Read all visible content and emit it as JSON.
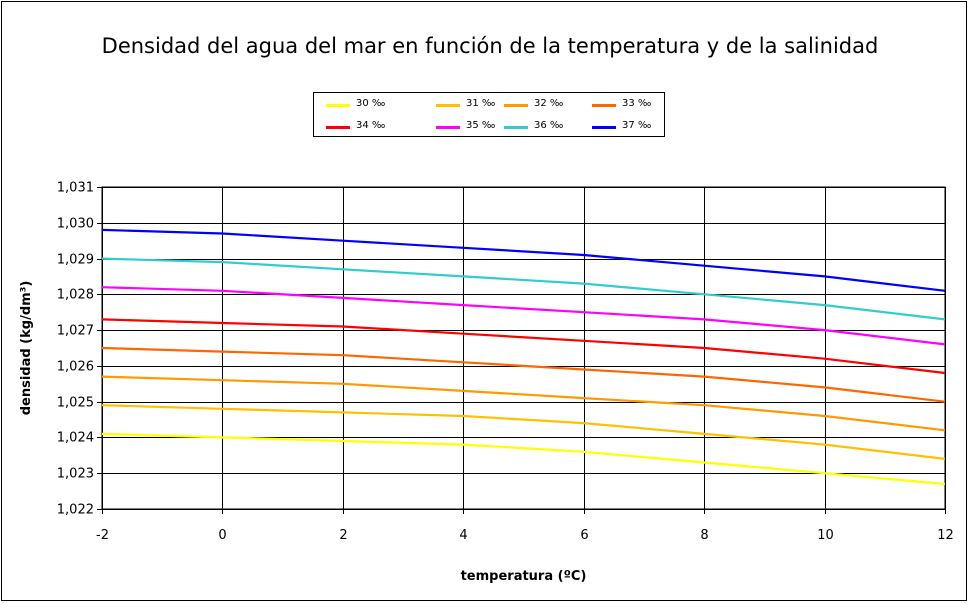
{
  "chart_data": {
    "type": "line",
    "title": "Densidad del agua del mar en función de la temperatura y de la salinidad",
    "xlabel": "temperatura (ºC)",
    "ylabel": "densidad (kg/dm³)",
    "xlim": [
      -2,
      12
    ],
    "ylim": [
      1.022,
      1.031
    ],
    "xticks": [
      "-2",
      "0",
      "2",
      "4",
      "6",
      "8",
      "10",
      "12"
    ],
    "yticks": [
      "1,022",
      "1,023",
      "1,024",
      "1,025",
      "1,026",
      "1,027",
      "1,028",
      "1,029",
      "1,030",
      "1,031"
    ],
    "x": [
      -2,
      0,
      2,
      4,
      6,
      8,
      10,
      12
    ],
    "series": [
      {
        "name": "30 ‰",
        "color": "#ffff00",
        "values": [
          1.0241,
          1.024,
          1.0239,
          1.0238,
          1.0236,
          1.0233,
          1.023,
          1.0227
        ]
      },
      {
        "name": "31 ‰",
        "color": "#ffc000",
        "values": [
          1.0249,
          1.0248,
          1.0247,
          1.0246,
          1.0244,
          1.0241,
          1.0238,
          1.0234
        ]
      },
      {
        "name": "32 ‰",
        "color": "#ff9900",
        "values": [
          1.0257,
          1.0256,
          1.0255,
          1.0253,
          1.0251,
          1.0249,
          1.0246,
          1.0242
        ]
      },
      {
        "name": "33 ‰",
        "color": "#ff6600",
        "values": [
          1.0265,
          1.0264,
          1.0263,
          1.0261,
          1.0259,
          1.0257,
          1.0254,
          1.025
        ]
      },
      {
        "name": "34 ‰",
        "color": "#ff0000",
        "values": [
          1.0273,
          1.0272,
          1.0271,
          1.0269,
          1.0267,
          1.0265,
          1.0262,
          1.0258
        ]
      },
      {
        "name": "35 ‰",
        "color": "#ff00ff",
        "values": [
          1.0282,
          1.0281,
          1.0279,
          1.0277,
          1.0275,
          1.0273,
          1.027,
          1.0266
        ]
      },
      {
        "name": "36 ‰",
        "color": "#33cccc",
        "values": [
          1.029,
          1.0289,
          1.0287,
          1.0285,
          1.0283,
          1.028,
          1.0277,
          1.0273
        ]
      },
      {
        "name": "37 ‰",
        "color": "#0000ff",
        "values": [
          1.0298,
          1.0297,
          1.0295,
          1.0293,
          1.0291,
          1.0288,
          1.0285,
          1.0281
        ]
      }
    ],
    "grid": true,
    "legend": "top"
  }
}
